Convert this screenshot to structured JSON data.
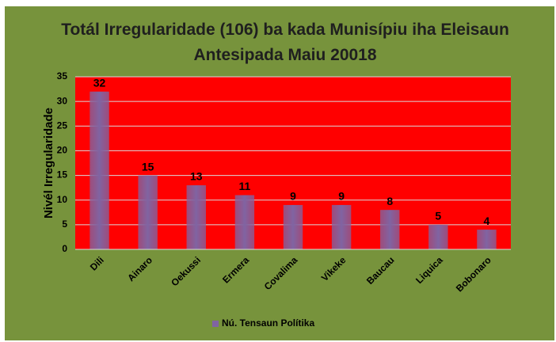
{
  "chart_data": {
    "type": "bar",
    "title": "Totál Irregularidade (106) ba kada Munisípiu iha Eleisaun Antesipada Maiu 20018",
    "y_label": "Nivél Irregularidade",
    "categories": [
      "Dili",
      "Ainaro",
      "Oekussi",
      "Ermera",
      "Covalima",
      "Vikeke",
      "Baucau",
      "Liquica",
      "Bobonaro"
    ],
    "series": [
      {
        "name": "Nú. Tensaun Polítika",
        "color": "#8064a2",
        "values": [
          32,
          15,
          13,
          11,
          9,
          9,
          8,
          5,
          4
        ]
      }
    ],
    "ylim": [
      0,
      35
    ],
    "yticks": [
      0,
      5,
      10,
      15,
      20,
      25,
      30,
      35
    ],
    "grid": true,
    "plot_background": "#ff0000",
    "legend": "bottom"
  }
}
